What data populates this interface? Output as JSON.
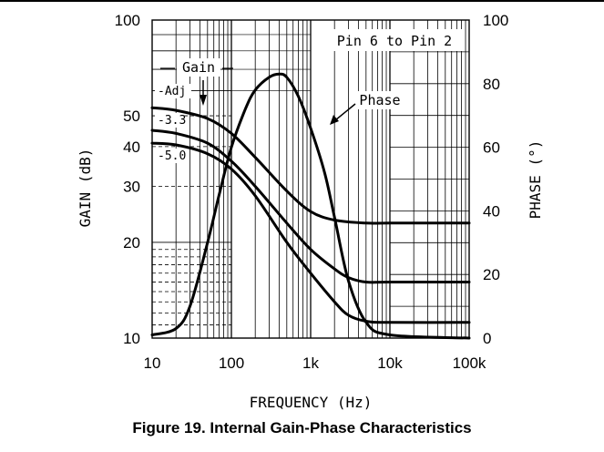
{
  "caption": "Figure 19. Internal Gain-Phase Characteristics",
  "chart_data": {
    "type": "line",
    "xlabel": "FREQUENCY (Hz)",
    "ylabel_left": "GAIN (dB)",
    "ylabel_right": "PHASE (°)",
    "x_scale": "log",
    "y_left_scale": "log",
    "xlim": [
      10,
      100000
    ],
    "ylim_left": [
      10,
      100
    ],
    "ylim_right": [
      0,
      100
    ],
    "x_ticks": [
      {
        "value": 10,
        "label": "10"
      },
      {
        "value": 100,
        "label": "100"
      },
      {
        "value": 1000,
        "label": "1k"
      },
      {
        "value": 10000,
        "label": "10k"
      },
      {
        "value": 100000,
        "label": "100k"
      }
    ],
    "y_left_ticks": [
      {
        "value": 10,
        "label": "10"
      },
      {
        "value": 20,
        "label": "20"
      },
      {
        "value": 30,
        "label": "30"
      },
      {
        "value": 40,
        "label": "40"
      },
      {
        "value": 50,
        "label": "50"
      },
      {
        "value": 100,
        "label": "100"
      }
    ],
    "y_right_ticks": [
      {
        "value": 0,
        "label": "0"
      },
      {
        "value": 20,
        "label": "20"
      },
      {
        "value": 40,
        "label": "40"
      },
      {
        "value": 60,
        "label": "60"
      },
      {
        "value": 80,
        "label": "80"
      },
      {
        "value": 100,
        "label": "100"
      }
    ],
    "condition_label": "Pin 6 to Pin 2",
    "annotations": {
      "gain": "Gain",
      "phase": "Phase"
    },
    "series": [
      {
        "name": "-Adj",
        "axis": "left",
        "kind": "gain",
        "x": [
          10,
          20,
          50,
          100,
          200,
          500,
          1000,
          2000,
          5000,
          10000,
          100000
        ],
        "y": [
          53,
          52,
          49,
          44,
          37,
          29,
          25,
          23.5,
          23,
          23,
          23
        ]
      },
      {
        "name": "-3.3",
        "axis": "left",
        "kind": "gain",
        "x": [
          10,
          20,
          50,
          100,
          200,
          500,
          1000,
          2000,
          3000,
          5000,
          10000,
          100000
        ],
        "y": [
          45,
          44,
          41,
          36,
          30,
          23,
          19,
          16.5,
          15.5,
          15,
          15,
          15
        ]
      },
      {
        "name": "-5.0",
        "axis": "left",
        "kind": "gain",
        "x": [
          10,
          20,
          50,
          100,
          200,
          500,
          1000,
          2000,
          3000,
          5000,
          10000,
          100000
        ],
        "y": [
          41,
          40.5,
          38,
          34,
          28,
          20,
          16,
          13,
          11.8,
          11.3,
          11.2,
          11.2
        ]
      },
      {
        "name": "Phase",
        "axis": "right",
        "kind": "phase",
        "x": [
          10,
          20,
          30,
          50,
          70,
          100,
          150,
          200,
          300,
          400,
          500,
          700,
          1000,
          1500,
          2000,
          3000,
          5000,
          10000,
          100000
        ],
        "y": [
          1,
          3,
          10,
          30,
          45,
          60,
          72,
          78,
          82,
          83,
          82,
          76,
          66,
          52,
          38,
          18,
          5,
          1,
          0
        ]
      }
    ]
  }
}
